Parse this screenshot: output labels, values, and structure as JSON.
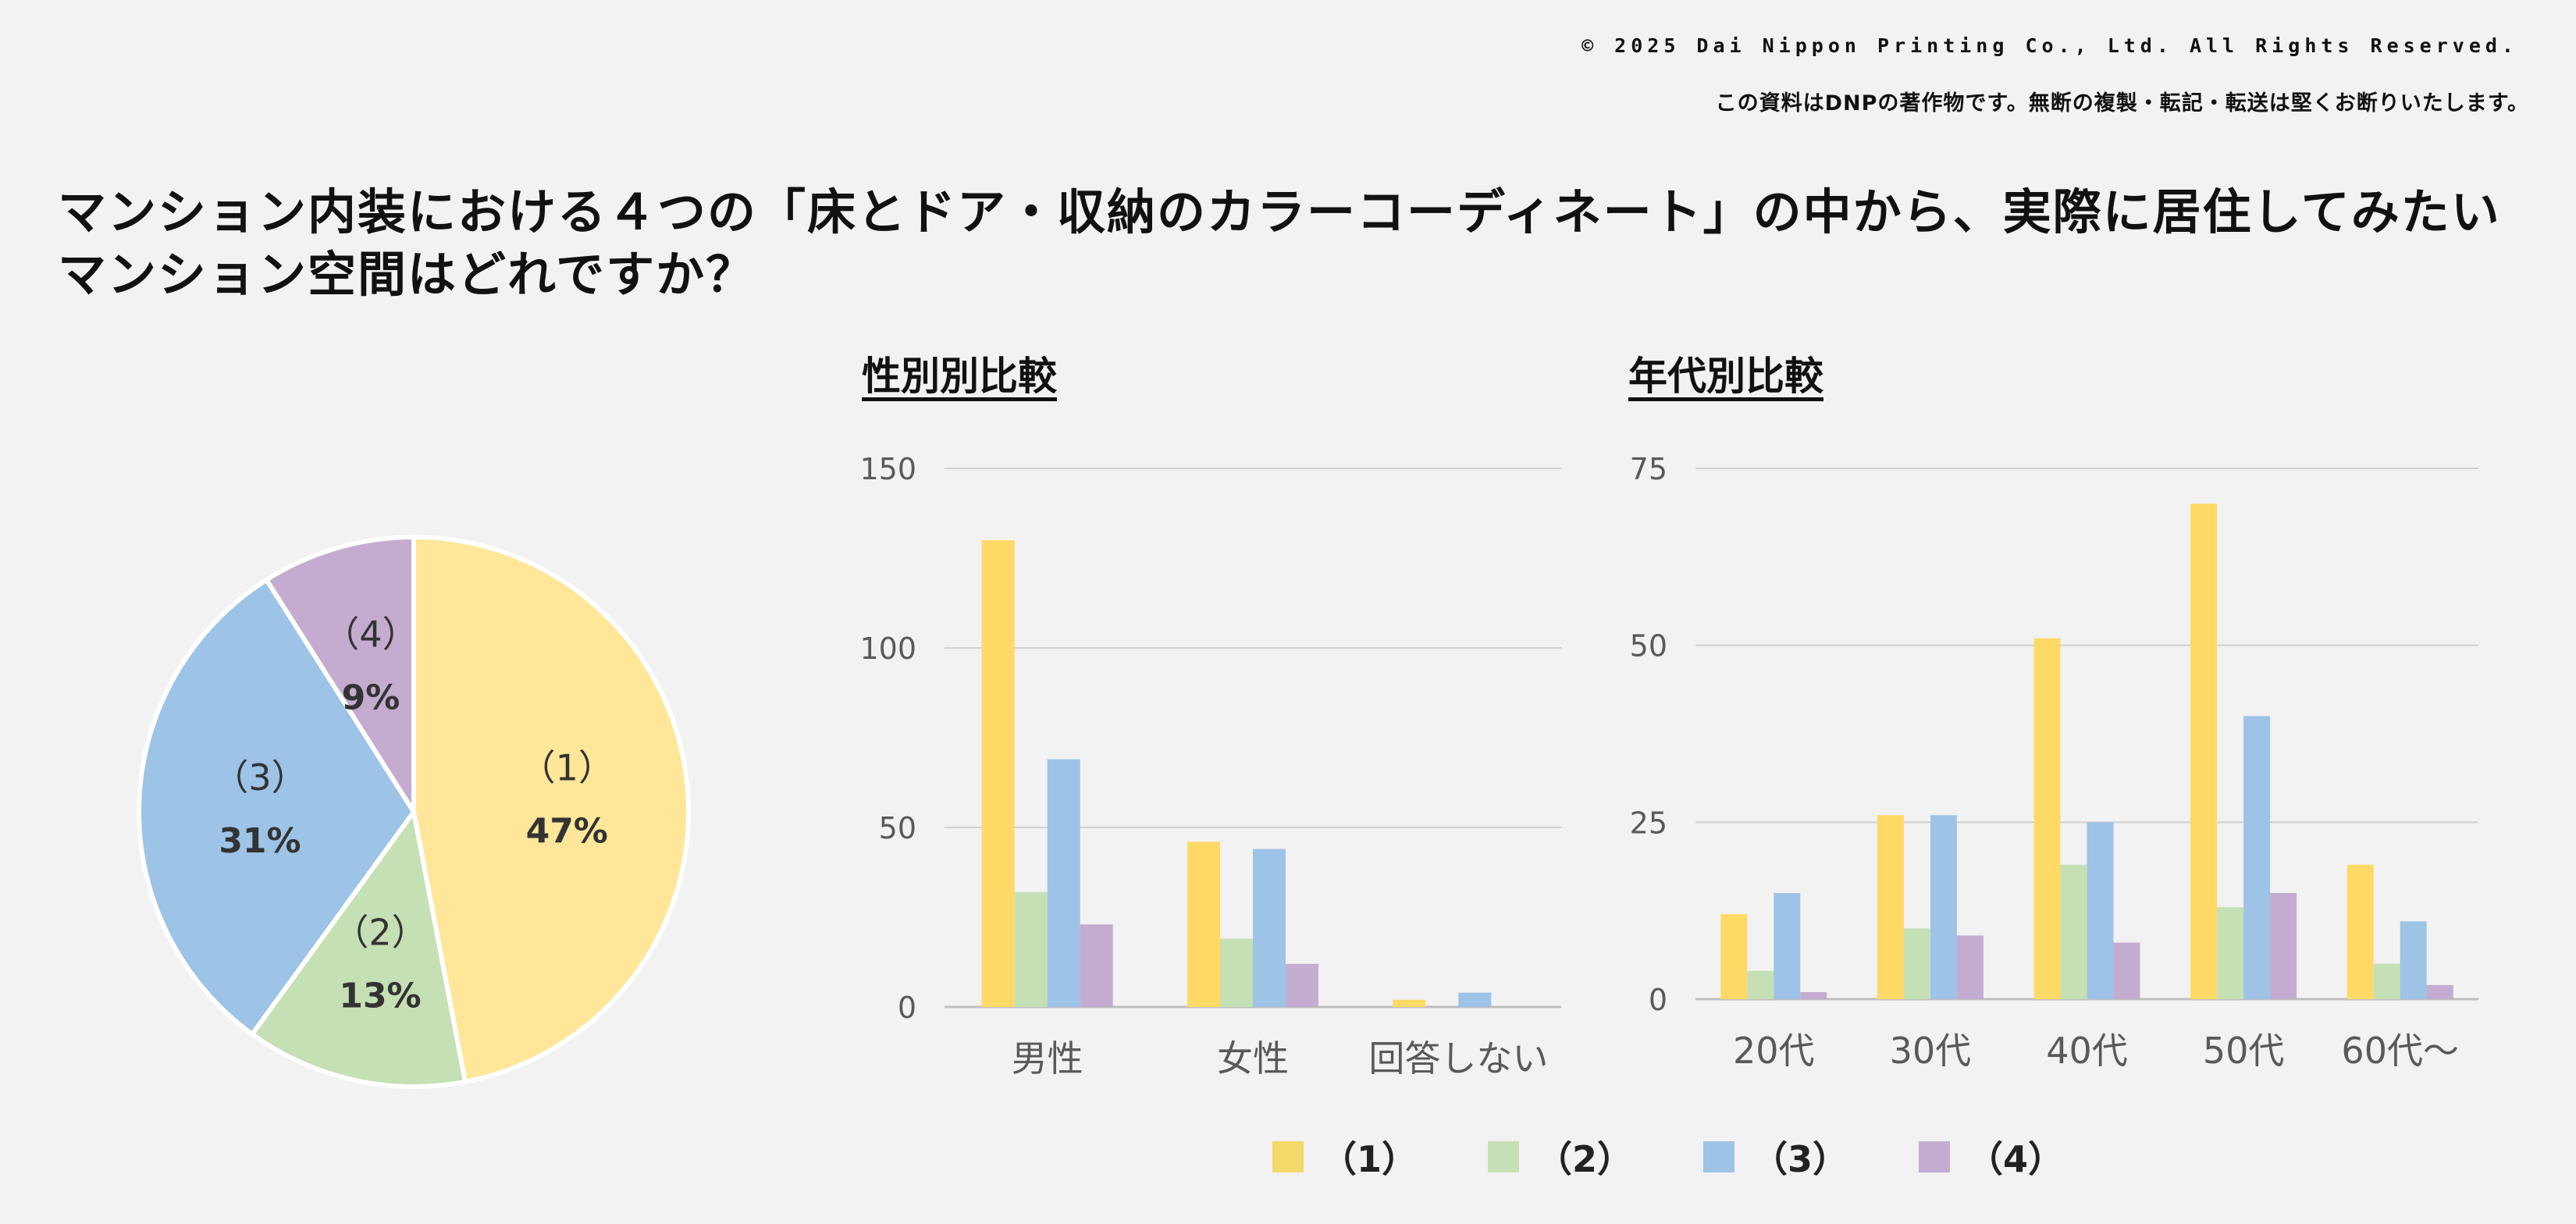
{
  "header": {
    "copyright": "© 2025 Dai Nippon Printing Co., Ltd. All Rights Reserved.",
    "notice": "この資料はDNPの著作物です。無断の複製・転記・転送は堅くお断りいたします。"
  },
  "title_lines": [
    "マンション内装における４つの「床とドア・収納のカラーコーディネート」の中から、実際に居住してみたい",
    "マンション空間はどれですか？"
  ],
  "colors": {
    "c1": "#ffe699",
    "c2": "#c5e0b4",
    "c3": "#9dc3e6",
    "c4": "#c4acd0",
    "c1_bar": "#ffd966",
    "c1_legend": "#f4d86a",
    "grid": "#d0d0d0",
    "axis": "#bfbfbf",
    "tick_text": "#595959"
  },
  "legend": [
    {
      "label": "（1）",
      "color_key": "c1_legend"
    },
    {
      "label": "（2）",
      "color_key": "c2"
    },
    {
      "label": "（3）",
      "color_key": "c3"
    },
    {
      "label": "（4）",
      "color_key": "c4"
    }
  ],
  "chart_data": [
    {
      "type": "pie",
      "labels": [
        "（1）",
        "（2）",
        "（3）",
        "（4）"
      ],
      "values": [
        47,
        13,
        31,
        9
      ],
      "value_labels": [
        "47%",
        "13%",
        "31%",
        "9%"
      ],
      "start": "12 o'clock, clockwise"
    },
    {
      "type": "bar",
      "title": "性別別比較",
      "categories": [
        "男性",
        "女性",
        "回答しない"
      ],
      "ylim": [
        0,
        150
      ],
      "yticks": [
        0,
        50,
        100,
        150
      ],
      "grid": true,
      "series": [
        {
          "name": "（1）",
          "values": [
            130,
            46,
            2
          ]
        },
        {
          "name": "（2）",
          "values": [
            32,
            19,
            0
          ]
        },
        {
          "name": "（3）",
          "values": [
            69,
            44,
            4
          ]
        },
        {
          "name": "（4）",
          "values": [
            23,
            12,
            0
          ]
        }
      ]
    },
    {
      "type": "bar",
      "title": "年代別比較",
      "categories": [
        "20代",
        "30代",
        "40代",
        "50代",
        "60代～"
      ],
      "ylim": [
        0,
        75
      ],
      "yticks": [
        0,
        25,
        50,
        75
      ],
      "grid": true,
      "series": [
        {
          "name": "（1）",
          "values": [
            12,
            26,
            51,
            70,
            19
          ]
        },
        {
          "name": "（2）",
          "values": [
            4,
            10,
            19,
            13,
            5
          ]
        },
        {
          "name": "（3）",
          "values": [
            15,
            26,
            25,
            40,
            11
          ]
        },
        {
          "name": "（4）",
          "values": [
            1,
            9,
            8,
            15,
            2
          ]
        }
      ]
    }
  ]
}
